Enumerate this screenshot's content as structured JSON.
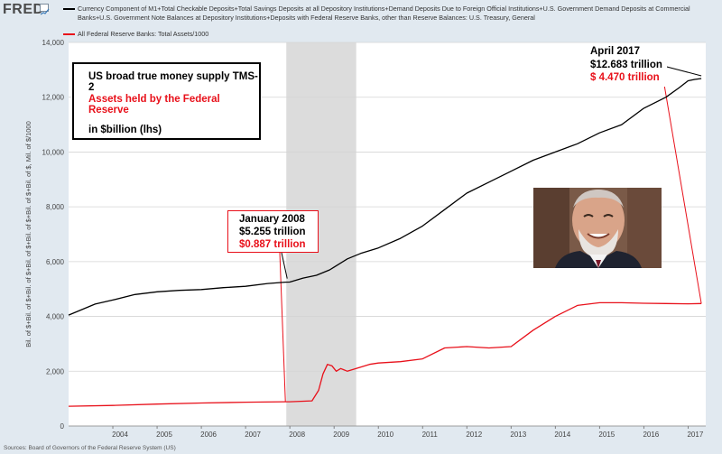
{
  "brand": {
    "name": "FRED"
  },
  "legend": {
    "black_series": "Currency Component of M1+Total Checkable Deposits+Total Savings Deposits at all Depository Institutions+Demand Deposits Due to Foreign Official Institutions+U.S. Government Demand Deposits at Commercial Banks+U.S. Government Note Balances at Depository Institutions+Deposits with Federal Reserve Banks, other than Reserve Balances: U.S. Treasury, General",
    "red_series": "All Federal Reserve Banks: Total Assets/1000",
    "black_color": "#000000",
    "red_color": "#e8101a"
  },
  "title_box": {
    "line1": "US broad true money supply TMS-2",
    "line2": "Assets held by the Federal Reserve",
    "line3": "in $billion (lhs)"
  },
  "annotations": {
    "jan2008": {
      "date": "January 2008",
      "tms": "$5.255 trillion",
      "fed": "$0.887 trillion"
    },
    "apr2017": {
      "date": "April 2017",
      "tms": "$12.683 trillion",
      "fed": "$  4.470 trillion"
    }
  },
  "source": "Sources: Board of Governors of the Federal Reserve System (US)",
  "portrait": {
    "icon": "portrait-photo-icon"
  },
  "chart_data": {
    "type": "line",
    "title": "",
    "xlabel": "",
    "ylabel": "Bil. of $+Bil. of $+Bil. of $+Bil. of $+Bil. of $+Bil. of $+Bil. of $, Mil. of $/1000",
    "xlim": [
      2003.0,
      2017.4
    ],
    "ylim": [
      0,
      14000
    ],
    "yticks": [
      0,
      2000,
      4000,
      6000,
      8000,
      10000,
      12000,
      14000
    ],
    "ytick_labels": [
      "0",
      "2,000",
      "4,000",
      "6,000",
      "8,000",
      "10,000",
      "12,000",
      "14,000"
    ],
    "xticks": [
      2004,
      2005,
      2006,
      2007,
      2008,
      2009,
      2010,
      2011,
      2012,
      2013,
      2014,
      2015,
      2016,
      2017
    ],
    "recession": [
      2007.92,
      2009.5
    ],
    "series": [
      {
        "name": "TMS-2 (black)",
        "color": "#000000",
        "x": [
          2003.0,
          2003.3,
          2003.6,
          2004.0,
          2004.5,
          2005.0,
          2005.5,
          2006.0,
          2006.5,
          2007.0,
          2007.5,
          2007.9,
          2008.0,
          2008.3,
          2008.6,
          2008.9,
          2009.0,
          2009.3,
          2009.6,
          2010.0,
          2010.5,
          2011.0,
          2011.5,
          2012.0,
          2012.5,
          2013.0,
          2013.5,
          2014.0,
          2014.5,
          2015.0,
          2015.5,
          2016.0,
          2016.5,
          2016.8,
          2017.0,
          2017.15,
          2017.3
        ],
        "values": [
          4050,
          4250,
          4450,
          4600,
          4800,
          4900,
          4950,
          4980,
          5050,
          5100,
          5200,
          5250,
          5255,
          5400,
          5500,
          5700,
          5800,
          6100,
          6300,
          6500,
          6850,
          7300,
          7900,
          8500,
          8900,
          9300,
          9700,
          10000,
          10300,
          10700,
          11000,
          11600,
          12000,
          12350,
          12600,
          12650,
          12683
        ]
      },
      {
        "name": "Fed assets (red)",
        "color": "#e8101a",
        "x": [
          2003.0,
          2004.0,
          2005.0,
          2006.0,
          2007.0,
          2007.9,
          2008.0,
          2008.5,
          2008.65,
          2008.75,
          2008.85,
          2008.95,
          2009.05,
          2009.15,
          2009.3,
          2009.5,
          2009.8,
          2010.0,
          2010.5,
          2011.0,
          2011.5,
          2012.0,
          2012.5,
          2013.0,
          2013.5,
          2014.0,
          2014.5,
          2015.0,
          2015.5,
          2016.0,
          2016.5,
          2017.0,
          2017.3
        ],
        "values": [
          720,
          750,
          800,
          840,
          870,
          885,
          887,
          920,
          1300,
          1900,
          2250,
          2200,
          2000,
          2100,
          2000,
          2100,
          2250,
          2300,
          2350,
          2450,
          2850,
          2900,
          2850,
          2900,
          3500,
          4000,
          4400,
          4500,
          4500,
          4480,
          4470,
          4460,
          4470
        ]
      }
    ]
  }
}
